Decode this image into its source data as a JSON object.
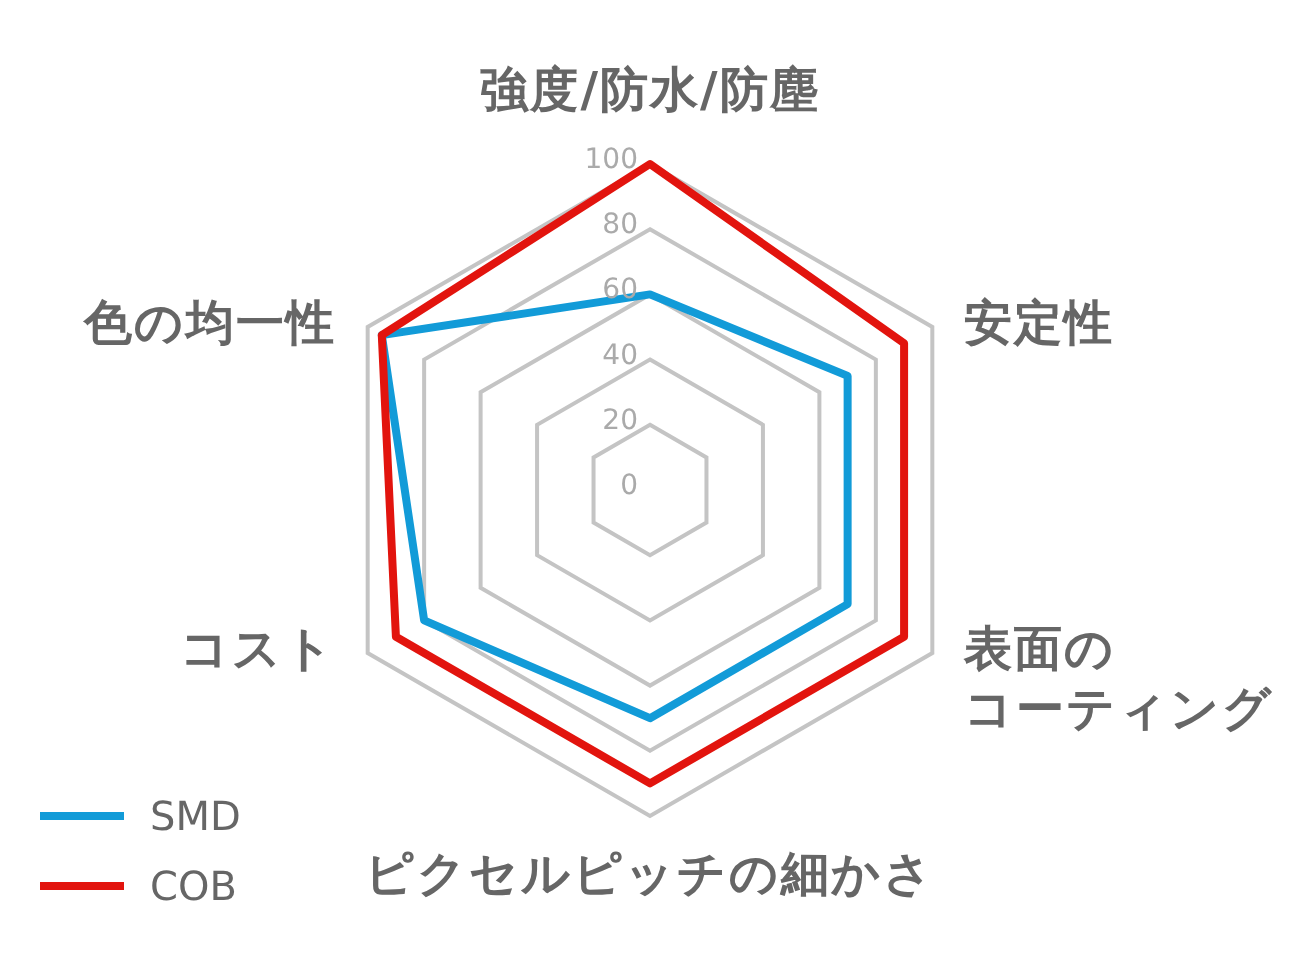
{
  "chart_data": {
    "type": "radar",
    "categories": [
      "強度/防水/防塵",
      "安定性",
      "表面のコーティング",
      "ピクセルピッチの細かさ",
      "コスト",
      "色の均一性"
    ],
    "series": [
      {
        "name": "SMD",
        "color": "#129bd8",
        "values": [
          60,
          70,
          70,
          70,
          80,
          95
        ]
      },
      {
        "name": "COB",
        "color": "#e2140e",
        "values": [
          100,
          90,
          90,
          90,
          90,
          95
        ]
      }
    ],
    "ylim": [
      0,
      100
    ],
    "yticks": [
      0,
      20,
      40,
      60,
      80,
      100
    ],
    "grid": true,
    "legend": "bottom left",
    "line_style": "solid"
  }
}
